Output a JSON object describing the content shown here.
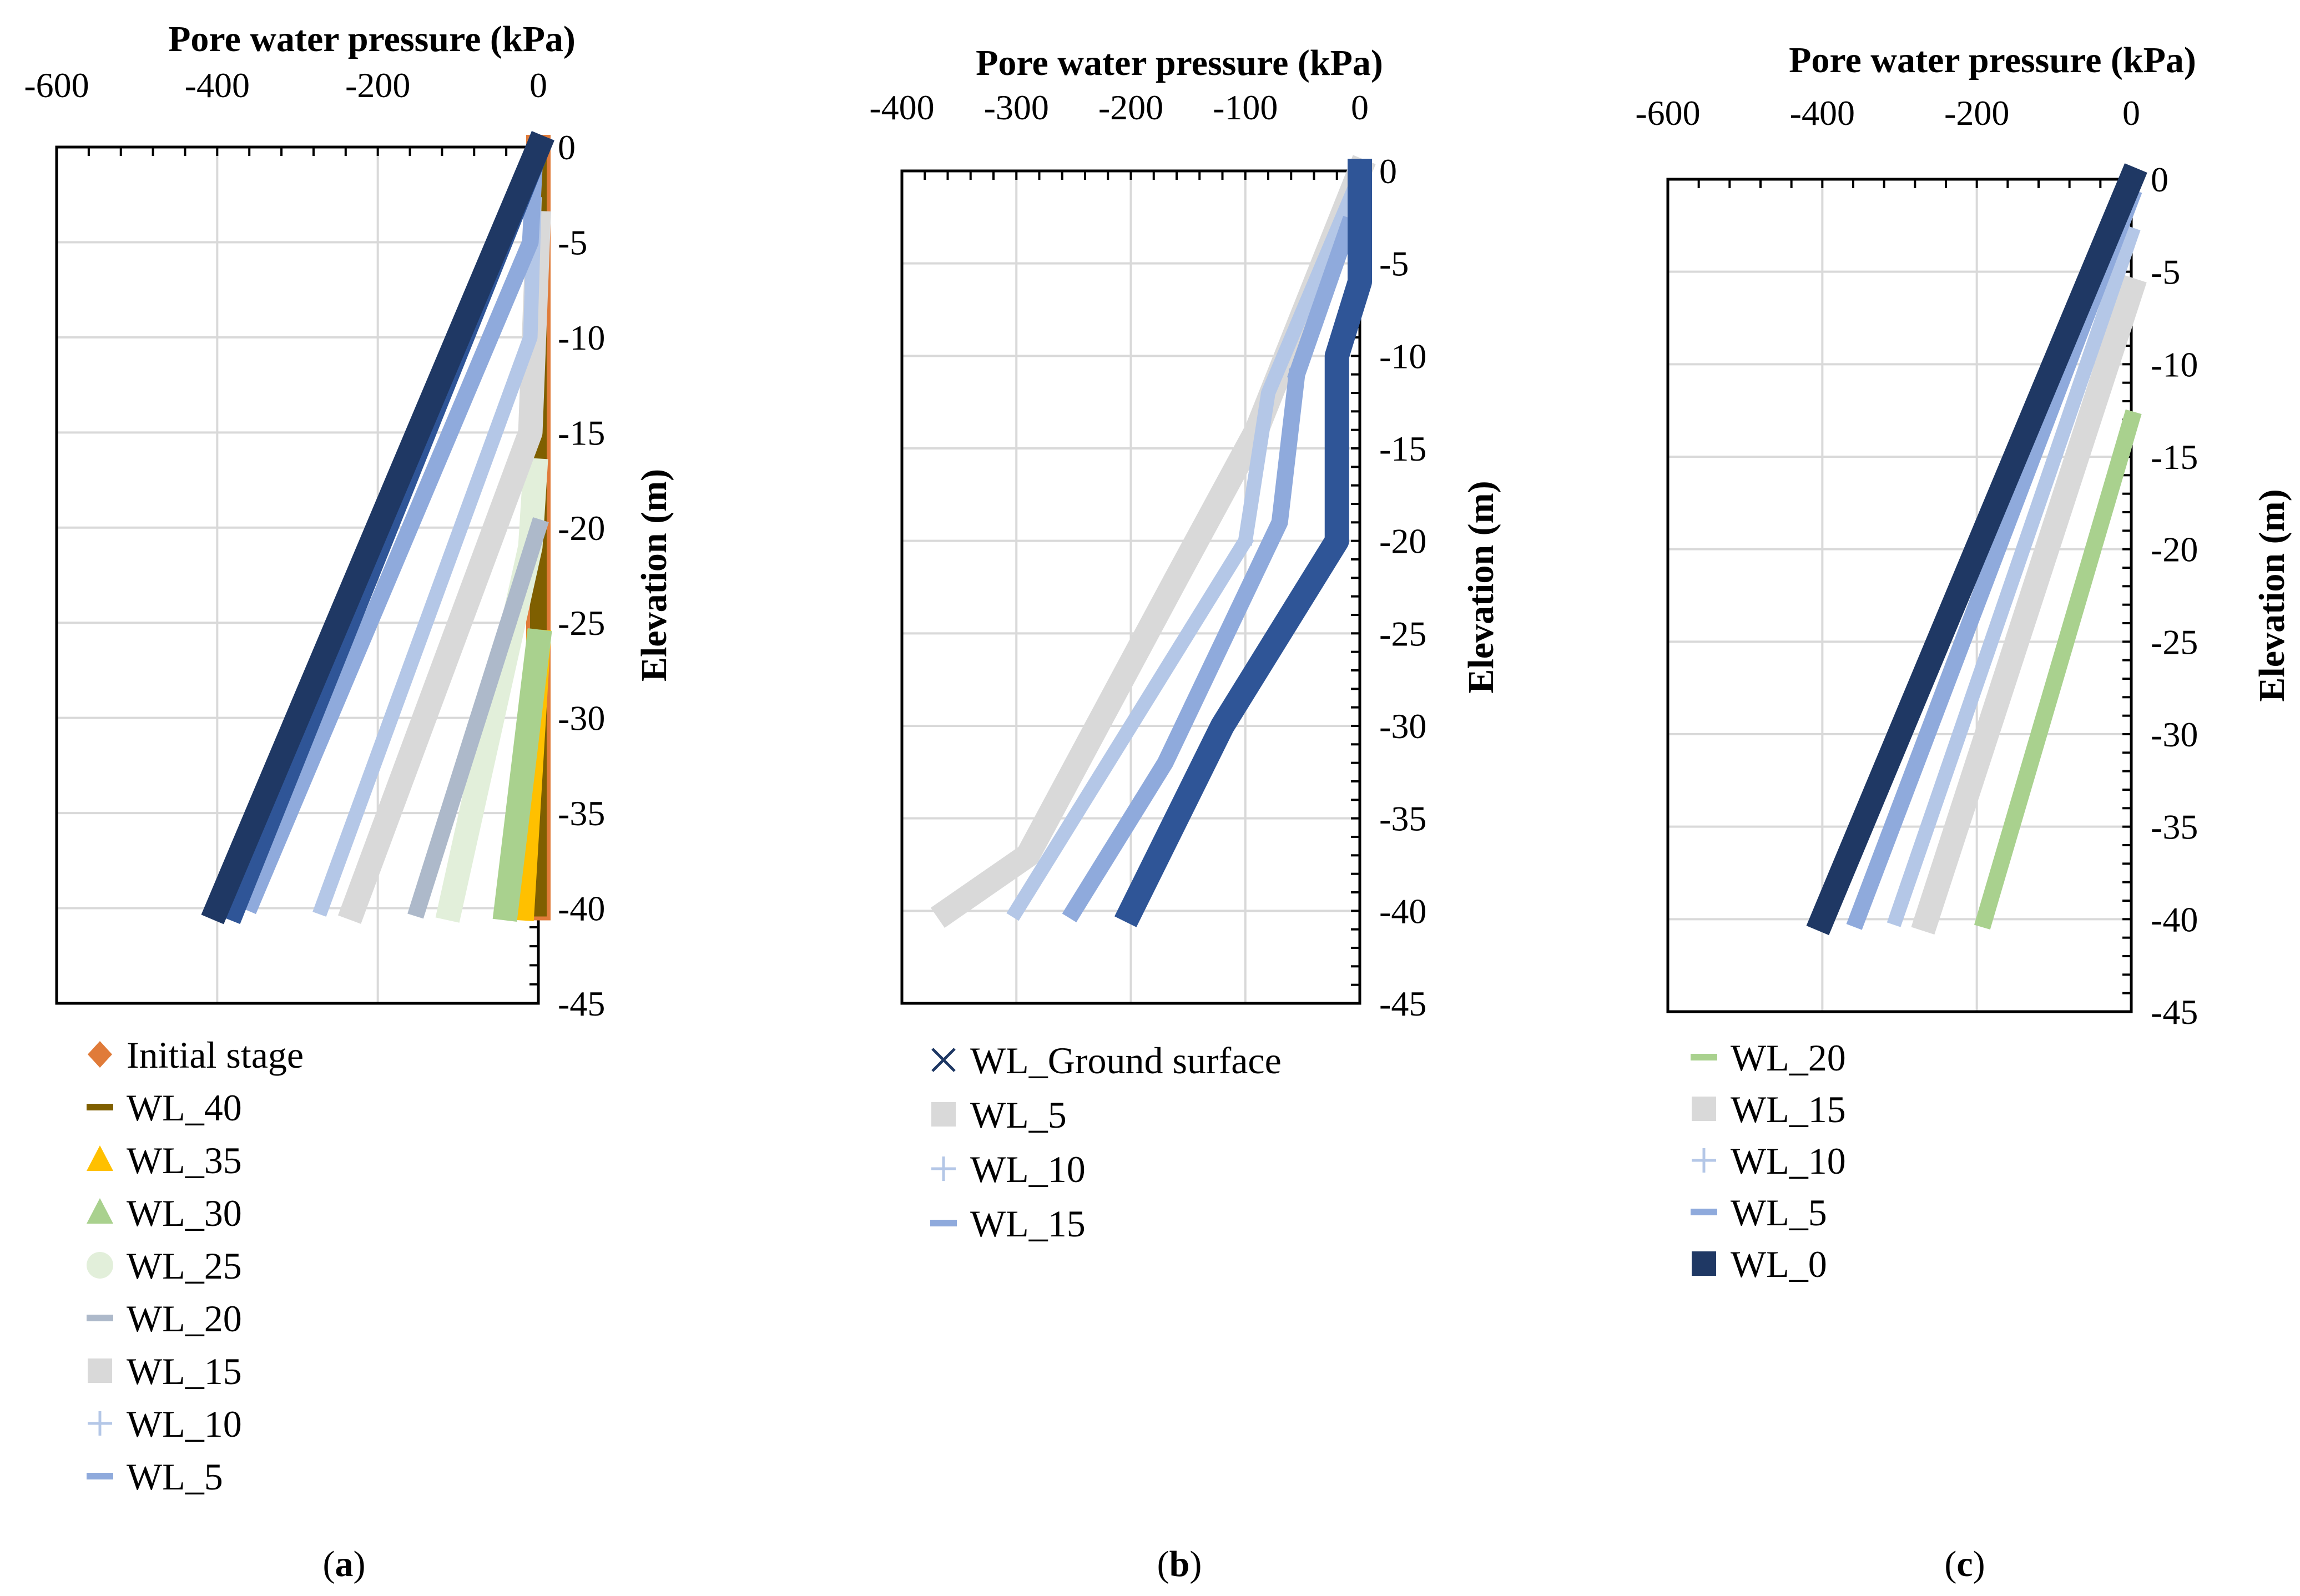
{
  "chart_data": [
    {
      "type": "scatter",
      "panel_label": "a",
      "title": "Pore water pressure (kPa)",
      "xlabel": "Pore water pressure (kPa)",
      "ylabel": "Elevation (m)",
      "xlim": [
        -600,
        0
      ],
      "ylim": [
        -45,
        0
      ],
      "x_ticks": [
        "-600",
        "-400",
        "-200",
        "0"
      ],
      "y_ticks": [
        "0",
        "-5",
        "-10",
        "-15",
        "-20",
        "-25",
        "-30",
        "-35",
        "-40",
        "-45"
      ],
      "grid": true,
      "legend_position": "bottom",
      "series": [
        {
          "name": "Initial stage",
          "marker": "diamond",
          "color": "#E07B39",
          "points": [
            [
              0,
              0
            ],
            [
              0,
              -40
            ]
          ]
        },
        {
          "name": "WL_40",
          "marker": "dash",
          "color": "#7F5F00",
          "points": [
            [
              0,
              -0.5
            ],
            [
              0,
              -40
            ]
          ]
        },
        {
          "name": "WL_35",
          "marker": "triangle",
          "color": "#FFC000",
          "points": [
            [
              0,
              -26
            ],
            [
              -20,
              -40
            ]
          ]
        },
        {
          "name": "WL_30",
          "marker": "triangle",
          "color": "#A9D18E",
          "points": [
            [
              0,
              -26
            ],
            [
              -40,
              -40
            ]
          ]
        },
        {
          "name": "WL_25",
          "marker": "circle",
          "color": "#E2EFDA",
          "points": [
            [
              -4,
              -17
            ],
            [
              -10,
              -21
            ],
            [
              -110,
              -40
            ]
          ]
        },
        {
          "name": "WL_20",
          "marker": "dash",
          "color": "#ADB9CA",
          "points": [
            [
              0,
              -20
            ],
            [
              -150,
              -40
            ]
          ]
        },
        {
          "name": "WL_15",
          "marker": "square",
          "color": "#D9D9D9",
          "points": [
            [
              0,
              -4
            ],
            [
              -10,
              -15
            ],
            [
              -230,
              -40
            ]
          ]
        },
        {
          "name": "WL_10",
          "marker": "plus",
          "color": "#B4C7E7",
          "points": [
            [
              -5,
              -3
            ],
            [
              -10,
              -10
            ],
            [
              -270,
              -40
            ]
          ]
        },
        {
          "name": "WL_5",
          "marker": "dash",
          "color": "#8FAADC",
          "points": [
            [
              -5,
              -1
            ],
            [
              -10,
              -5
            ],
            [
              -360,
              -40
            ]
          ]
        },
        {
          "name": "WL_0",
          "marker": "square",
          "color": "#2F5597",
          "points": [
            [
              0,
              0
            ],
            [
              -380,
              -40
            ]
          ],
          "in_legend": false
        },
        {
          "name": "WL_Ground surface",
          "marker": "x",
          "color": "#1F3864",
          "points": [
            [
              0,
              0
            ],
            [
              -400,
              -40
            ]
          ],
          "in_legend": false
        }
      ]
    },
    {
      "type": "scatter",
      "panel_label": "b",
      "title": "Pore water pressure (kPa)",
      "xlabel": "Pore water pressure (kPa)",
      "ylabel": "Elevation (m)",
      "xlim": [
        -400,
        0
      ],
      "ylim": [
        -45,
        0
      ],
      "x_ticks": [
        "-400",
        "-300",
        "-200",
        "-100",
        "0"
      ],
      "y_ticks": [
        "0",
        "-5",
        "-10",
        "-15",
        "-20",
        "-25",
        "-30",
        "-35",
        "-40",
        "-45"
      ],
      "grid": true,
      "legend_position": "bottom",
      "series": [
        {
          "name": "WL_Ground surface",
          "marker": "x",
          "color": "#1F3864",
          "points": [],
          "in_legend": true
        },
        {
          "name": "WL_5",
          "marker": "square",
          "color": "#D9D9D9",
          "points": [
            [
              0,
              0
            ],
            [
              -90,
              -14
            ],
            [
              -160,
              -22
            ],
            [
              -290,
              -37
            ],
            [
              -360,
              -40
            ]
          ]
        },
        {
          "name": "WL_10",
          "marker": "plus",
          "color": "#B4C7E7",
          "points": [
            [
              -5,
              -1
            ],
            [
              -80,
              -12
            ],
            [
              -100,
              -20
            ],
            [
              -200,
              -30
            ],
            [
              -300,
              -40
            ]
          ]
        },
        {
          "name": "WL_15",
          "marker": "dash",
          "color": "#8FAADC",
          "points": [
            [
              -10,
              -3
            ],
            [
              -55,
              -11
            ],
            [
              -70,
              -19
            ],
            [
              -170,
              -32
            ],
            [
              -250,
              -40
            ]
          ]
        },
        {
          "name": "WL_20",
          "marker": "square",
          "color": "#2F5597",
          "points": [
            [
              0,
              0
            ],
            [
              0,
              -6
            ],
            [
              -20,
              -10
            ],
            [
              -20,
              -20
            ],
            [
              -120,
              -30
            ],
            [
              -200,
              -40
            ]
          ],
          "in_legend": false
        }
      ]
    },
    {
      "type": "scatter",
      "panel_label": "c",
      "title": "Pore water pressure (kPa)",
      "xlabel": "Pore water pressure (kPa)",
      "ylabel": "Elevation (m)",
      "xlim": [
        -600,
        0
      ],
      "ylim": [
        -45,
        0
      ],
      "x_ticks": [
        "-600",
        "-400",
        "-200",
        "0"
      ],
      "y_ticks": [
        "0",
        "-5",
        "-10",
        "-15",
        "-20",
        "-25",
        "-30",
        "-35",
        "-40",
        "-45"
      ],
      "grid": true,
      "legend_position": "bottom",
      "series": [
        {
          "name": "WL_20",
          "marker": "dash",
          "color": "#A9D18E",
          "points": [
            [
              0,
              -13
            ],
            [
              -190,
              -40
            ]
          ]
        },
        {
          "name": "WL_15",
          "marker": "square",
          "color": "#D9D9D9",
          "points": [
            [
              0,
              -6
            ],
            [
              -265,
              -40
            ]
          ]
        },
        {
          "name": "WL_10",
          "marker": "plus",
          "color": "#B4C7E7",
          "points": [
            [
              0,
              -3
            ],
            [
              -305,
              -40
            ]
          ]
        },
        {
          "name": "WL_5",
          "marker": "dash",
          "color": "#8FAADC",
          "points": [
            [
              0,
              -1
            ],
            [
              -355,
              -40
            ]
          ]
        },
        {
          "name": "WL_0",
          "marker": "square",
          "color": "#1F3864",
          "points": [
            [
              0,
              0
            ],
            [
              -400,
              -40
            ]
          ]
        }
      ]
    }
  ],
  "panel_captions": [
    "a",
    "b",
    "c"
  ]
}
